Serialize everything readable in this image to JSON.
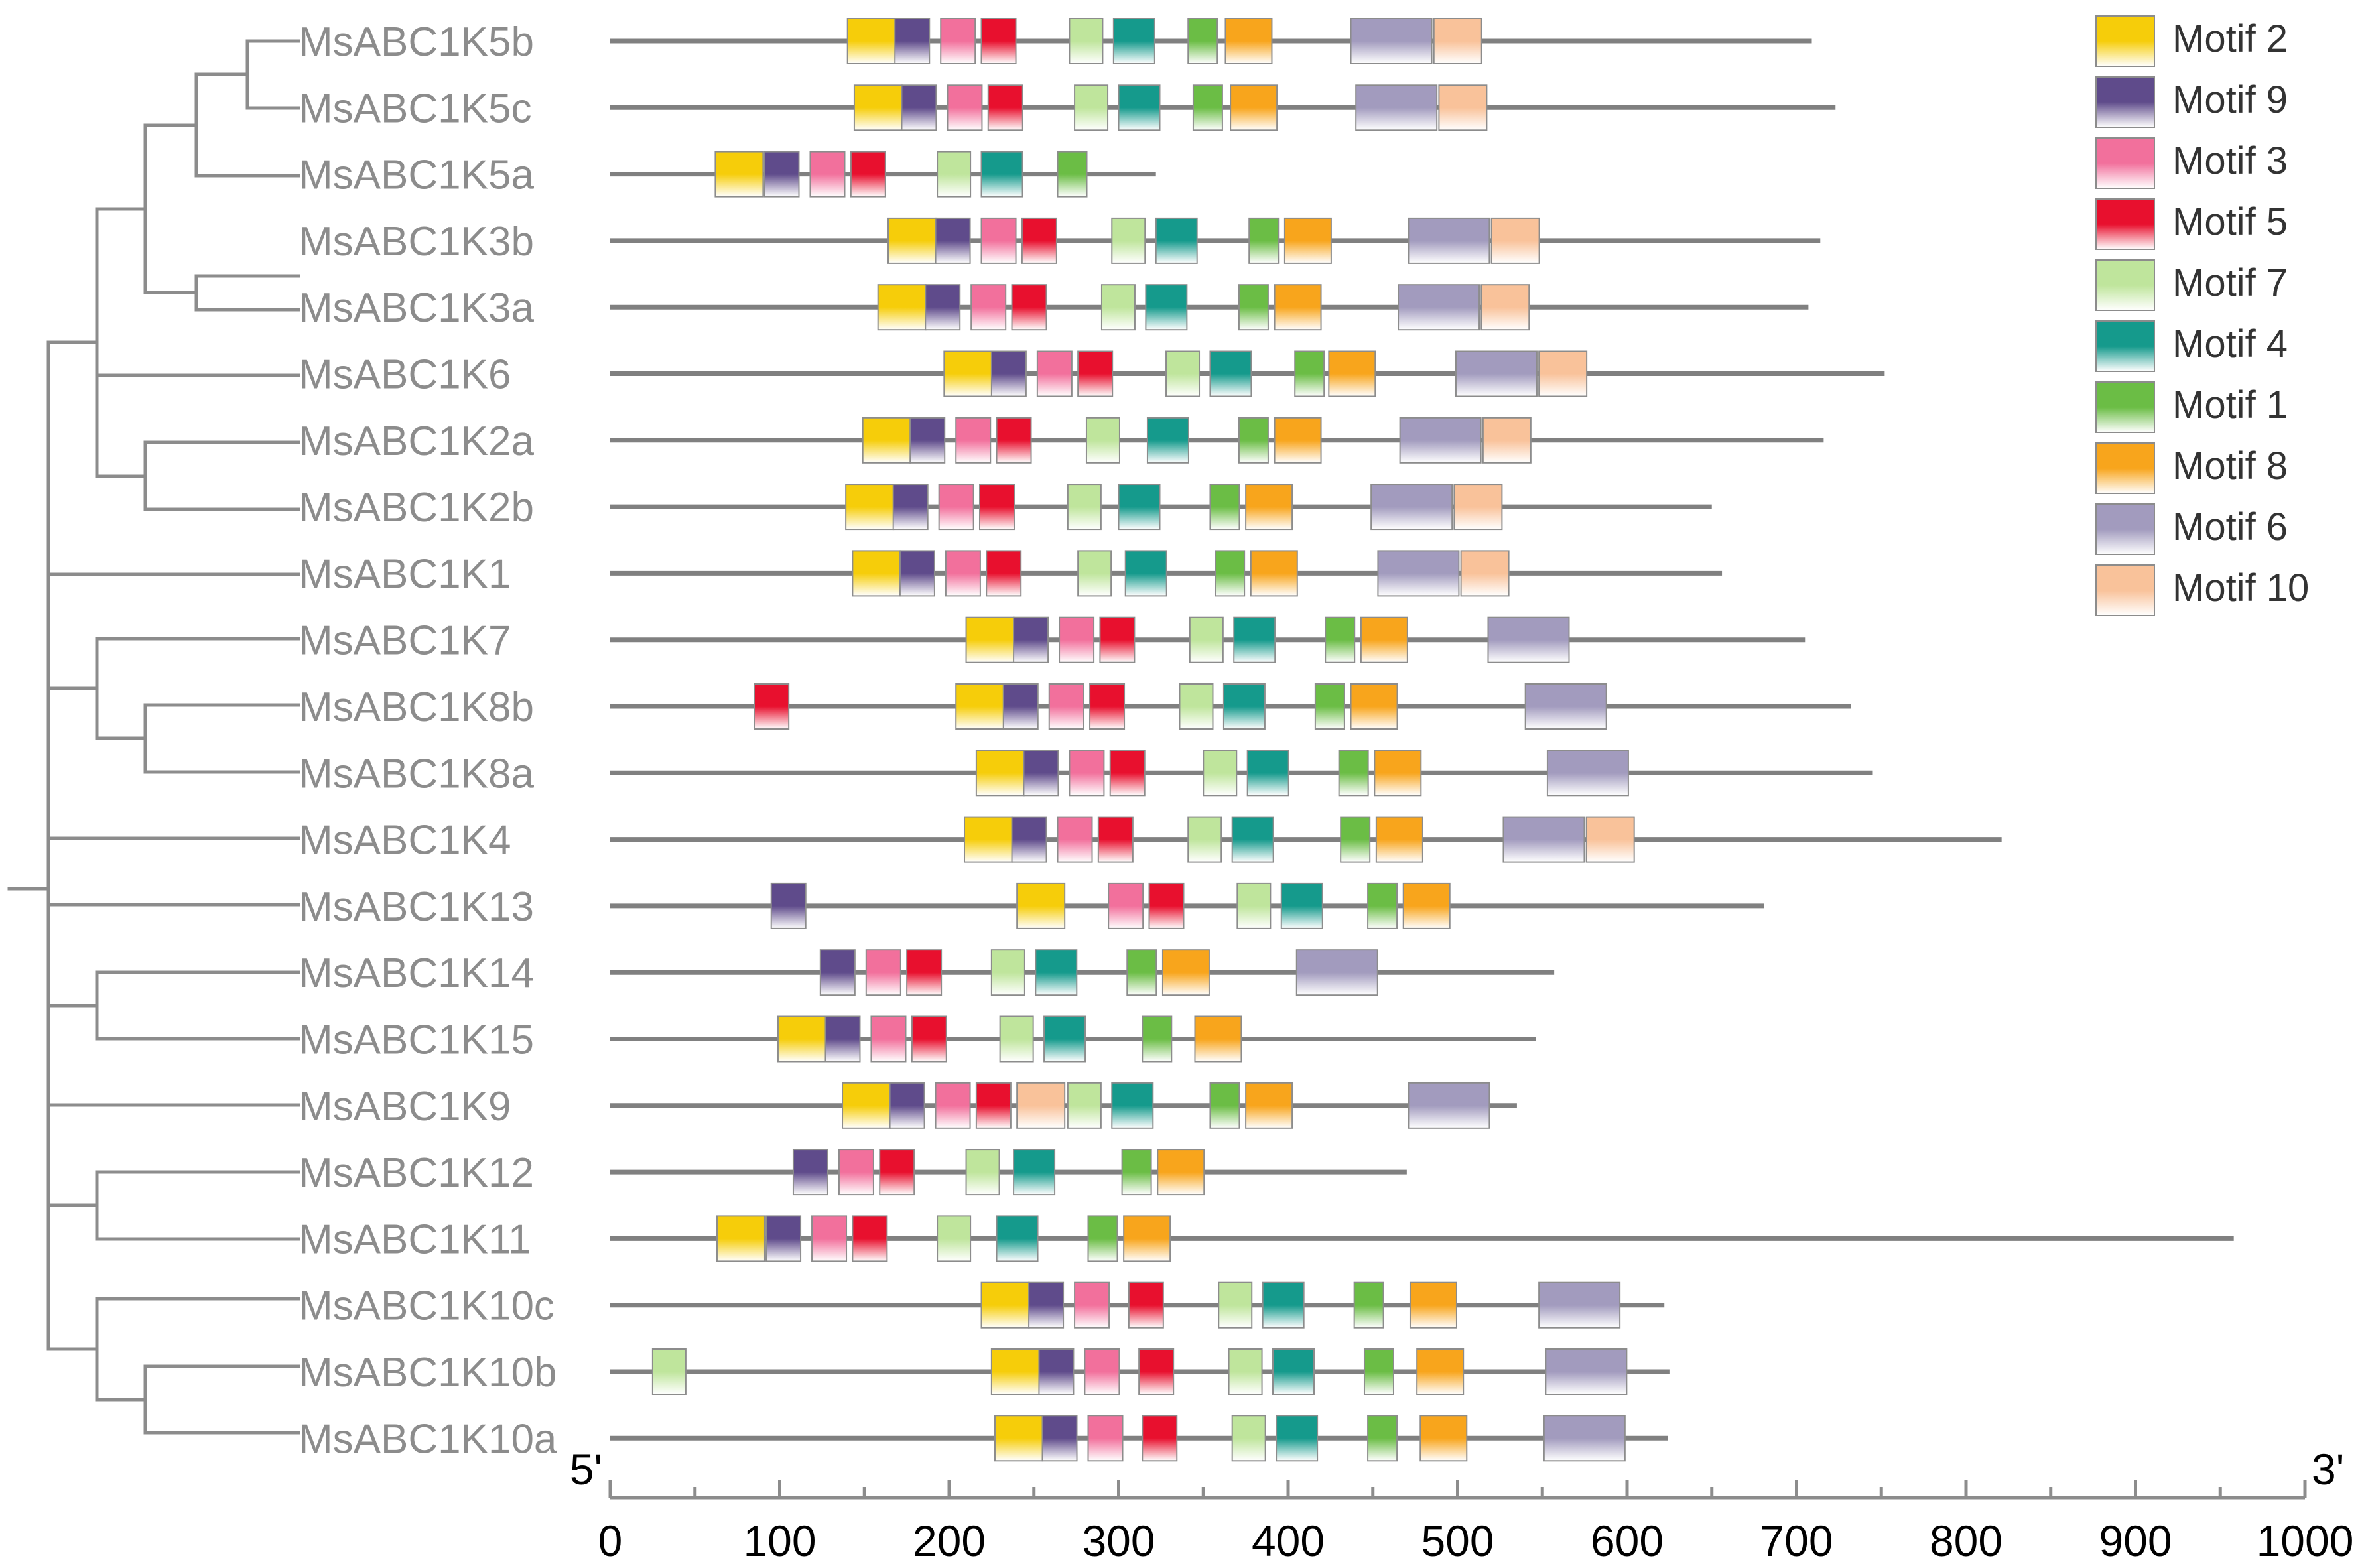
{
  "chart_data": {
    "type": "motif-structure",
    "x_axis": {
      "min": 0,
      "max": 1000,
      "ticks": [
        0,
        100,
        200,
        300,
        400,
        500,
        600,
        700,
        800,
        900,
        1000
      ],
      "minor_step": 50,
      "start_label": "5'",
      "end_label": "3'"
    },
    "motifs": [
      {
        "id": 2,
        "name": "Motif 2",
        "color": "#f6cd0a"
      },
      {
        "id": 9,
        "name": "Motif 9",
        "color": "#5f4b8b"
      },
      {
        "id": 3,
        "name": "Motif 3",
        "color": "#f2709c"
      },
      {
        "id": 5,
        "name": "Motif 5",
        "color": "#e8102e"
      },
      {
        "id": 7,
        "name": "Motif 7",
        "color": "#bfe59c"
      },
      {
        "id": 4,
        "name": "Motif 4",
        "color": "#159a8c"
      },
      {
        "id": 1,
        "name": "Motif 1",
        "color": "#6bbd45"
      },
      {
        "id": 8,
        "name": "Motif 8",
        "color": "#f8a51c"
      },
      {
        "id": 6,
        "name": "Motif 6",
        "color": "#a29bbe"
      },
      {
        "id": 10,
        "name": "Motif 10",
        "color": "#f9c29a"
      }
    ],
    "genes": [
      {
        "name": "MsABC1K5b",
        "length": 709,
        "motifs": [
          [
            2,
            140
          ],
          [
            9,
            168
          ],
          [
            3,
            195
          ],
          [
            5,
            219
          ],
          [
            7,
            271
          ],
          [
            4,
            297
          ],
          [
            1,
            341
          ],
          [
            8,
            363
          ],
          [
            6,
            437
          ],
          [
            10,
            486
          ]
        ]
      },
      {
        "name": "MsABC1K5c",
        "length": 723,
        "motifs": [
          [
            2,
            144
          ],
          [
            9,
            172
          ],
          [
            3,
            199
          ],
          [
            5,
            223
          ],
          [
            7,
            274
          ],
          [
            4,
            300
          ],
          [
            1,
            344
          ],
          [
            8,
            366
          ],
          [
            6,
            440
          ],
          [
            10,
            489
          ]
        ]
      },
      {
        "name": "MsABC1K5a",
        "length": 322,
        "motifs": [
          [
            2,
            62
          ],
          [
            9,
            91
          ],
          [
            3,
            118
          ],
          [
            5,
            142
          ],
          [
            7,
            193
          ],
          [
            4,
            219
          ],
          [
            1,
            264
          ]
        ]
      },
      {
        "name": "MsABC1K3b",
        "length": 714,
        "motifs": [
          [
            2,
            164
          ],
          [
            9,
            192
          ],
          [
            3,
            219
          ],
          [
            5,
            243
          ],
          [
            7,
            296
          ],
          [
            4,
            322
          ],
          [
            1,
            377
          ],
          [
            8,
            398
          ],
          [
            6,
            471
          ],
          [
            10,
            520
          ]
        ]
      },
      {
        "name": "MsABC1K3a",
        "length": 707,
        "motifs": [
          [
            2,
            158
          ],
          [
            9,
            186
          ],
          [
            3,
            213
          ],
          [
            5,
            237
          ],
          [
            7,
            290
          ],
          [
            4,
            316
          ],
          [
            1,
            371
          ],
          [
            8,
            392
          ],
          [
            6,
            465
          ],
          [
            10,
            514
          ]
        ]
      },
      {
        "name": "MsABC1K6",
        "length": 752,
        "motifs": [
          [
            2,
            197
          ],
          [
            9,
            225
          ],
          [
            3,
            252
          ],
          [
            5,
            276
          ],
          [
            7,
            328
          ],
          [
            4,
            354
          ],
          [
            1,
            404
          ],
          [
            8,
            424
          ],
          [
            6,
            499
          ],
          [
            10,
            548
          ]
        ]
      },
      {
        "name": "MsABC1K2a",
        "length": 716,
        "motifs": [
          [
            2,
            149
          ],
          [
            9,
            177
          ],
          [
            3,
            204
          ],
          [
            5,
            228
          ],
          [
            7,
            281
          ],
          [
            4,
            317
          ],
          [
            1,
            371
          ],
          [
            8,
            392
          ],
          [
            6,
            466
          ],
          [
            10,
            515
          ]
        ]
      },
      {
        "name": "MsABC1K2b",
        "length": 650,
        "motifs": [
          [
            2,
            139
          ],
          [
            9,
            167
          ],
          [
            3,
            194
          ],
          [
            5,
            218
          ],
          [
            7,
            270
          ],
          [
            4,
            300
          ],
          [
            1,
            354
          ],
          [
            8,
            375
          ],
          [
            6,
            449
          ],
          [
            10,
            498
          ]
        ]
      },
      {
        "name": "MsABC1K1",
        "length": 656,
        "motifs": [
          [
            2,
            143
          ],
          [
            9,
            171
          ],
          [
            3,
            198
          ],
          [
            5,
            222
          ],
          [
            7,
            276
          ],
          [
            4,
            304
          ],
          [
            1,
            357
          ],
          [
            8,
            378
          ],
          [
            6,
            453
          ],
          [
            10,
            502
          ]
        ]
      },
      {
        "name": "MsABC1K7",
        "length": 705,
        "motifs": [
          [
            2,
            210
          ],
          [
            9,
            238
          ],
          [
            3,
            265
          ],
          [
            5,
            289
          ],
          [
            7,
            342
          ],
          [
            4,
            368
          ],
          [
            1,
            422
          ],
          [
            8,
            443
          ],
          [
            6,
            518
          ]
        ]
      },
      {
        "name": "MsABC1K8b",
        "length": 732,
        "motifs": [
          [
            5,
            85
          ],
          [
            2,
            204
          ],
          [
            9,
            232
          ],
          [
            3,
            259
          ],
          [
            5,
            283
          ],
          [
            7,
            336
          ],
          [
            4,
            362
          ],
          [
            1,
            416
          ],
          [
            8,
            437
          ],
          [
            6,
            540
          ]
        ]
      },
      {
        "name": "MsABC1K8a",
        "length": 745,
        "motifs": [
          [
            2,
            216
          ],
          [
            9,
            244
          ],
          [
            3,
            271
          ],
          [
            5,
            295
          ],
          [
            7,
            350
          ],
          [
            4,
            376
          ],
          [
            1,
            430
          ],
          [
            8,
            451
          ],
          [
            6,
            553
          ]
        ]
      },
      {
        "name": "MsABC1K4",
        "length": 821,
        "motifs": [
          [
            2,
            209
          ],
          [
            9,
            237
          ],
          [
            3,
            264
          ],
          [
            5,
            288
          ],
          [
            7,
            341
          ],
          [
            4,
            367
          ],
          [
            1,
            431
          ],
          [
            8,
            452
          ],
          [
            6,
            527
          ],
          [
            10,
            576
          ]
        ]
      },
      {
        "name": "MsABC1K13",
        "length": 681,
        "motifs": [
          [
            9,
            95
          ],
          [
            2,
            240
          ],
          [
            3,
            294
          ],
          [
            5,
            318
          ],
          [
            7,
            370
          ],
          [
            4,
            396
          ],
          [
            1,
            447
          ],
          [
            8,
            468
          ]
        ]
      },
      {
        "name": "MsABC1K14",
        "length": 557,
        "motifs": [
          [
            9,
            124
          ],
          [
            3,
            151
          ],
          [
            5,
            175
          ],
          [
            7,
            225
          ],
          [
            4,
            251
          ],
          [
            1,
            305
          ],
          [
            8,
            326
          ],
          [
            6,
            405
          ]
        ]
      },
      {
        "name": "MsABC1K15",
        "length": 546,
        "motifs": [
          [
            2,
            99
          ],
          [
            9,
            127
          ],
          [
            3,
            154
          ],
          [
            5,
            178
          ],
          [
            7,
            230
          ],
          [
            4,
            256
          ],
          [
            1,
            314
          ],
          [
            8,
            345
          ]
        ]
      },
      {
        "name": "MsABC1K9",
        "length": 535,
        "motifs": [
          [
            2,
            137
          ],
          [
            9,
            165
          ],
          [
            3,
            192
          ],
          [
            5,
            216
          ],
          [
            10,
            240
          ],
          [
            7,
            270
          ],
          [
            4,
            296
          ],
          [
            1,
            354
          ],
          [
            8,
            375
          ],
          [
            6,
            471
          ]
        ]
      },
      {
        "name": "MsABC1K12",
        "length": 470,
        "motifs": [
          [
            9,
            108
          ],
          [
            3,
            135
          ],
          [
            5,
            159
          ],
          [
            7,
            210
          ],
          [
            4,
            238
          ],
          [
            1,
            302
          ],
          [
            8,
            323
          ]
        ]
      },
      {
        "name": "MsABC1K11",
        "length": 958,
        "motifs": [
          [
            2,
            63
          ],
          [
            9,
            92
          ],
          [
            3,
            119
          ],
          [
            5,
            143
          ],
          [
            7,
            193
          ],
          [
            4,
            228
          ],
          [
            1,
            282
          ],
          [
            8,
            303
          ]
        ]
      },
      {
        "name": "MsABC1K10c",
        "length": 622,
        "motifs": [
          [
            2,
            219
          ],
          [
            9,
            247
          ],
          [
            3,
            274
          ],
          [
            5,
            306
          ],
          [
            7,
            359
          ],
          [
            4,
            385
          ],
          [
            1,
            439
          ],
          [
            8,
            472
          ],
          [
            6,
            548
          ]
        ]
      },
      {
        "name": "MsABC1K10b",
        "length": 625,
        "motifs": [
          [
            7,
            25
          ],
          [
            2,
            225
          ],
          [
            9,
            253
          ],
          [
            3,
            280
          ],
          [
            5,
            312
          ],
          [
            7,
            365
          ],
          [
            4,
            391
          ],
          [
            1,
            445
          ],
          [
            8,
            476
          ],
          [
            6,
            552
          ]
        ]
      },
      {
        "name": "MsABC1K10a",
        "length": 624,
        "motifs": [
          [
            2,
            227
          ],
          [
            9,
            255
          ],
          [
            3,
            282
          ],
          [
            5,
            314
          ],
          [
            7,
            367
          ],
          [
            4,
            393
          ],
          [
            1,
            447
          ],
          [
            8,
            478
          ],
          [
            6,
            551
          ]
        ]
      }
    ]
  }
}
